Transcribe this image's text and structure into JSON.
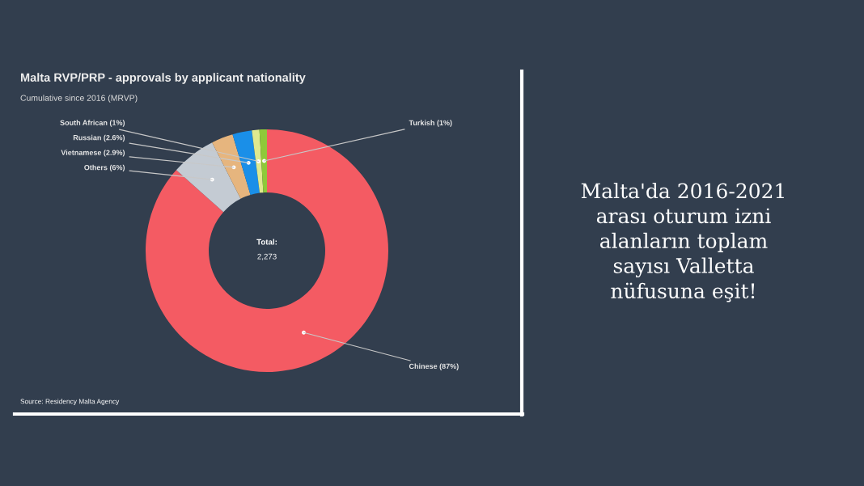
{
  "chart_data": {
    "type": "donut",
    "title": "Malta RVP/PRP - approvals by applicant nationality",
    "subtitle": "Cumulative since 2016 (MRVP)",
    "categories": [
      "Chinese (87%)",
      "Others (6%)",
      "Vietnamese (2.9%)",
      "Russian (2.6%)",
      "South African (1%)",
      "Turkish (1%)"
    ],
    "values": [
      87,
      6,
      2.9,
      2.6,
      1,
      1
    ],
    "colors": [
      "#f45b63",
      "#c4cbd3",
      "#e6b57e",
      "#1a8fe8",
      "#dfe98f",
      "#8fc93a"
    ],
    "annotations": [
      "Total:",
      "2,273",
      "Source: Residency Malta Agency",
      "Malta'da 2016-2021\narası oturum izni\nalanların toplam\nsayısı Valletta\nnüfusuna eşit!"
    ],
    "data_labels": false
  }
}
